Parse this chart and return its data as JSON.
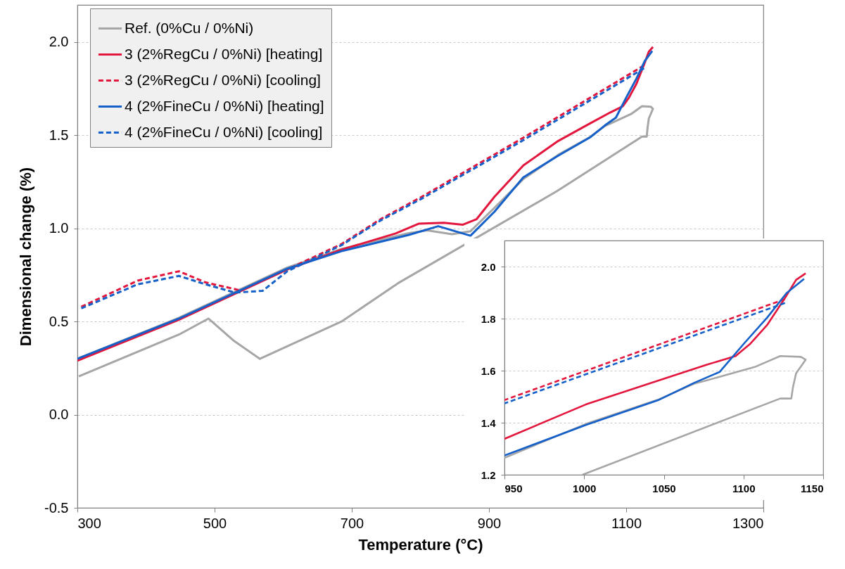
{
  "chart_data": [
    {
      "type": "line",
      "xlabel": "Temperature (°C)",
      "ylabel": "Dimensional change (%)",
      "xlim": [
        300,
        1300
      ],
      "ylim": [
        -0.5,
        2.2
      ],
      "xticks": [
        300,
        500,
        700,
        900,
        1100,
        1300
      ],
      "yticks": [
        {
          "value": -0.5,
          "label": "-0.5"
        },
        {
          "value": 0,
          "label": "0.0"
        },
        {
          "value": 0.5,
          "label": "0.5"
        },
        {
          "value": 1,
          "label": "1.0"
        },
        {
          "value": 1.5,
          "label": "1.5"
        },
        {
          "value": 2,
          "label": "2.0"
        }
      ],
      "grid": "y",
      "legend": "top left",
      "series": [
        {
          "name": "Ref. (0%Cu / 0%Ni)",
          "color": "#a6a6a6",
          "line_style": "solid",
          "x": [
            300,
            448,
            606,
            685,
            783,
            810,
            846,
            873,
            905,
            950,
            1001,
            1047,
            1069,
            1077,
            1107,
            1123,
            1136,
            1139,
            1133,
            1131,
            1130,
            1123,
            999,
            767,
            685,
            566,
            527,
            491,
            448,
            302
          ],
          "values": [
            0.3,
            0.52,
            0.79,
            0.89,
            0.975,
            0.99,
            0.969,
            0.985,
            1.1,
            1.265,
            1.395,
            1.49,
            1.55,
            1.563,
            1.614,
            1.656,
            1.653,
            1.642,
            1.59,
            1.535,
            1.493,
            1.493,
            1.2,
            0.705,
            0.5,
            0.3,
            0.4,
            0.516,
            0.43,
            0.206
          ]
        },
        {
          "name": "3 (2%RegCu / 0%Ni) [heating]",
          "color": "#e3173e",
          "line_style": "solid",
          "x": [
            300,
            448,
            606,
            685,
            764,
            798,
            834,
            862,
            882,
            908,
            950,
            1001,
            1047,
            1077,
            1095,
            1104,
            1115,
            1126,
            1133,
            1139
          ],
          "values": [
            0.29,
            0.51,
            0.78,
            0.886,
            0.973,
            1.026,
            1.03,
            1.02,
            1.05,
            1.17,
            1.338,
            1.47,
            1.563,
            1.623,
            1.656,
            1.702,
            1.777,
            1.879,
            1.949,
            1.974
          ]
        },
        {
          "name": "3 (2%RegCu / 0%Ni) [cooling]",
          "color": "#e3173e",
          "line_style": "dashed",
          "x": [
            1126,
            950,
            802,
            743,
            685,
            606,
            538,
            487,
            448,
            388,
            302
          ],
          "values": [
            1.875,
            1.487,
            1.17,
            1.052,
            0.916,
            0.78,
            0.667,
            0.71,
            0.77,
            0.72,
            0.573
          ]
        },
        {
          "name": "4 (2%FineCu / 0%Ni) [heating]",
          "color": "#1560c9",
          "line_style": "solid",
          "x": [
            300,
            448,
            606,
            685,
            783,
            826,
            873,
            908,
            950,
            1001,
            1047,
            1069,
            1085,
            1100,
            1115,
            1127,
            1138
          ],
          "values": [
            0.3,
            0.516,
            0.784,
            0.878,
            0.965,
            1.012,
            0.961,
            1.09,
            1.274,
            1.391,
            1.488,
            1.553,
            1.595,
            1.702,
            1.805,
            1.898,
            1.953
          ]
        },
        {
          "name": "4 (2%FineCu / 0%Ni) [cooling]",
          "color": "#1560c9",
          "line_style": "dashed",
          "x": [
            1126,
            950,
            802,
            743,
            685,
            606,
            570,
            530,
            487,
            448,
            388,
            302
          ],
          "values": [
            1.86,
            1.474,
            1.16,
            1.045,
            0.91,
            0.77,
            0.665,
            0.655,
            0.7,
            0.745,
            0.7,
            0.565
          ]
        }
      ]
    },
    {
      "type": "line",
      "xlim": [
        950,
        1150
      ],
      "ylim": [
        1.2,
        2.1
      ],
      "xticks": [
        950,
        1000,
        1050,
        1100,
        1150
      ],
      "yticks": [
        {
          "value": 1.2,
          "label": "1.2"
        },
        {
          "value": 1.4,
          "label": "1.4"
        },
        {
          "value": 1.6,
          "label": "1.6"
        },
        {
          "value": 1.8,
          "label": "1.8"
        },
        {
          "value": 2,
          "label": "2.0"
        }
      ],
      "grid": "y",
      "series": [
        {
          "color": "#a6a6a6",
          "line_style": "solid",
          "x": [
            950,
            1001,
            1047,
            1069,
            1077,
            1107,
            1123,
            1136,
            1139,
            1133,
            1131,
            1130,
            1123,
            999
          ],
          "values": [
            1.265,
            1.395,
            1.49,
            1.55,
            1.563,
            1.614,
            1.656,
            1.653,
            1.642,
            1.59,
            1.535,
            1.493,
            1.493,
            1.2
          ]
        },
        {
          "color": "#e3173e",
          "line_style": "solid",
          "x": [
            950,
            1001,
            1047,
            1077,
            1095,
            1104,
            1115,
            1126,
            1133,
            1139
          ],
          "values": [
            1.338,
            1.47,
            1.563,
            1.623,
            1.656,
            1.702,
            1.777,
            1.879,
            1.949,
            1.974
          ]
        },
        {
          "color": "#e3173e",
          "line_style": "dashed",
          "x": [
            1126,
            950
          ],
          "values": [
            1.875,
            1.487
          ]
        },
        {
          "color": "#1560c9",
          "line_style": "solid",
          "x": [
            950,
            1001,
            1047,
            1069,
            1085,
            1100,
            1115,
            1127,
            1138
          ],
          "values": [
            1.274,
            1.391,
            1.488,
            1.553,
            1.595,
            1.702,
            1.805,
            1.898,
            1.953
          ]
        },
        {
          "color": "#1560c9",
          "line_style": "dashed",
          "x": [
            1126,
            950
          ],
          "values": [
            1.86,
            1.474
          ]
        }
      ]
    }
  ]
}
